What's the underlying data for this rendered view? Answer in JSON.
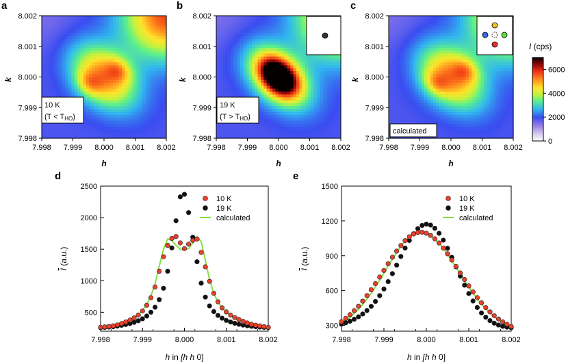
{
  "panel_letters": [
    "a",
    "b",
    "c",
    "d",
    "e"
  ],
  "colorbar": {
    "title": "I (cps)",
    "ticks": [
      "0",
      "2000",
      "4000",
      "6000"
    ],
    "range": [
      0,
      7000
    ]
  },
  "heatmap_axes": {
    "xlabel": "h",
    "ylabel": "k",
    "xticks": [
      "7.998",
      "7.999",
      "8.000",
      "8.001",
      "8.002"
    ],
    "yticks": [
      "8.002",
      "8.001",
      "8.000",
      "7.999",
      "7.998"
    ]
  },
  "heatmap_labels": {
    "a_temp": "10 K",
    "a_cond": "(T < T",
    "a_sub": "HO",
    "b_temp": "19 K",
    "b_cond": "(T > T",
    "b_sub": "HO",
    "c_label": "calculated"
  },
  "plot_d": {
    "ylabel": "I (a.u.)",
    "xlabel": "h in [h h 0]",
    "xticks": [
      "7.998",
      "7.999",
      "8.000",
      "8.001",
      "8.002"
    ],
    "yticks": [
      "500",
      "1000",
      "1500",
      "2000",
      "2500"
    ],
    "legend": [
      "10 K",
      "19 K",
      "calculated"
    ]
  },
  "plot_e": {
    "ylabel": "I (a.u.)",
    "xlabel": "h in [h h 0]",
    "xticks": [
      "7.998",
      "7.999",
      "8.000",
      "8.001",
      "8.002"
    ],
    "yticks": [
      "300",
      "600",
      "900",
      "1200",
      "1500"
    ],
    "legend": [
      "10 K",
      "19 K",
      "calculated"
    ]
  },
  "colors": {
    "red_marker": "#e8412c",
    "black_marker": "#111111",
    "calc_line": "#7ee33a"
  },
  "chart_data": [
    {
      "type": "heatmap",
      "panel": "a",
      "title": "10 K (T < T_HO)",
      "xlabel": "h",
      "ylabel": "k",
      "xlim": [
        7.998,
        8.002
      ],
      "ylim": [
        7.998,
        8.002
      ],
      "peaks": [
        {
          "h": 7.99955,
          "k": 7.99985,
          "I": 5200
        },
        {
          "h": 8.0003,
          "k": 8.0004,
          "I": 5200
        }
      ]
    },
    {
      "type": "heatmap",
      "panel": "b",
      "title": "19 K (T > T_HO)",
      "xlabel": "h",
      "ylabel": "k",
      "xlim": [
        7.998,
        8.002
      ],
      "ylim": [
        7.998,
        8.002
      ],
      "peaks": [
        {
          "h": 8.0,
          "k": 8.0,
          "I": 7000
        }
      ]
    },
    {
      "type": "heatmap",
      "panel": "c",
      "title": "calculated",
      "xlabel": "h",
      "ylabel": "k",
      "xlim": [
        7.998,
        8.002
      ],
      "ylim": [
        7.998,
        8.002
      ],
      "peaks": [
        {
          "h": 7.99955,
          "k": 7.99975,
          "I": 5200
        },
        {
          "h": 8.0003,
          "k": 8.00035,
          "I": 5200
        }
      ]
    },
    {
      "type": "scatter",
      "panel": "d",
      "xlabel": "h in [h h 0]",
      "ylabel": "I (a.u.)",
      "xlim": [
        7.998,
        8.002
      ],
      "ylim": [
        200,
        2500
      ],
      "series": [
        {
          "name": "10 K",
          "x": [
            7.998,
            7.9981,
            7.9982,
            7.9983,
            7.9984,
            7.9985,
            7.9986,
            7.9987,
            7.9988,
            7.9989,
            7.999,
            7.9991,
            7.9992,
            7.9993,
            7.9994,
            7.9995,
            7.9996,
            7.9997,
            7.9998,
            7.9999,
            8.0,
            8.0001,
            8.0002,
            8.0003,
            8.0004,
            8.0005,
            8.0006,
            8.0007,
            8.0008,
            8.0009,
            8.001,
            8.0011,
            8.0012,
            8.0013,
            8.0014,
            8.0015,
            8.0016,
            8.0017,
            8.0018,
            8.0019,
            8.002
          ],
          "values": [
            262,
            268,
            275,
            285,
            300,
            320,
            345,
            375,
            410,
            455,
            520,
            610,
            730,
            900,
            1150,
            1380,
            1560,
            1670,
            1700,
            1600,
            1510,
            1580,
            1640,
            1660,
            1450,
            1220,
            990,
            800,
            665,
            570,
            505,
            455,
            415,
            385,
            355,
            330,
            310,
            295,
            282,
            272,
            262
          ]
        },
        {
          "name": "19 K",
          "x": [
            7.998,
            7.9981,
            7.9982,
            7.9983,
            7.9984,
            7.9985,
            7.9986,
            7.9987,
            7.9988,
            7.9989,
            7.999,
            7.9991,
            7.9992,
            7.9993,
            7.9994,
            7.9995,
            7.9996,
            7.9997,
            7.9998,
            7.9999,
            8.0,
            8.0001,
            8.0002,
            8.0003,
            8.0004,
            8.0005,
            8.0006,
            8.0007,
            8.0008,
            8.0009,
            8.001,
            8.0011,
            8.0012,
            8.0013,
            8.0014,
            8.0015,
            8.0016,
            8.0017,
            8.0018,
            8.0019,
            8.002
          ],
          "values": [
            255,
            260,
            265,
            270,
            280,
            292,
            305,
            320,
            340,
            365,
            395,
            440,
            500,
            580,
            700,
            880,
            1150,
            1520,
            1950,
            2330,
            2370,
            2080,
            1690,
            1300,
            960,
            740,
            600,
            510,
            450,
            405,
            370,
            345,
            325,
            308,
            295,
            285,
            277,
            270,
            265,
            260,
            256
          ]
        },
        {
          "name": "calculated",
          "x": [
            7.998,
            7.9981,
            7.9982,
            7.9983,
            7.9984,
            7.9985,
            7.9986,
            7.9987,
            7.9988,
            7.9989,
            7.999,
            7.9991,
            7.9992,
            7.9993,
            7.9994,
            7.9995,
            7.9996,
            7.9997,
            7.9998,
            7.9999,
            8.0,
            8.0001,
            8.0002,
            8.0003,
            8.0004,
            8.0005,
            8.0006,
            8.0007,
            8.0008,
            8.0009,
            8.001,
            8.0011,
            8.0012,
            8.0013,
            8.0014,
            8.0015,
            8.0016,
            8.0017,
            8.0018,
            8.0019,
            8.002
          ],
          "values": [
            265,
            270,
            278,
            288,
            302,
            322,
            348,
            380,
            418,
            465,
            530,
            625,
            760,
            950,
            1230,
            1500,
            1660,
            1640,
            1560,
            1500,
            1490,
            1510,
            1600,
            1700,
            1620,
            1320,
            1020,
            800,
            660,
            565,
            500,
            450,
            410,
            380,
            350,
            328,
            308,
            293,
            282,
            272,
            262
          ]
        }
      ]
    },
    {
      "type": "scatter",
      "panel": "e",
      "xlabel": "h in [h h 0]",
      "ylabel": "I (a.u.)",
      "xlim": [
        7.998,
        8.002
      ],
      "ylim": [
        250,
        1500
      ],
      "series": [
        {
          "name": "10 K",
          "x": [
            7.998,
            7.9981,
            7.9982,
            7.9983,
            7.9984,
            7.9985,
            7.9986,
            7.9987,
            7.9988,
            7.9989,
            7.999,
            7.9991,
            7.9992,
            7.9993,
            7.9994,
            7.9995,
            7.9996,
            7.9997,
            7.9998,
            7.9999,
            8.0,
            8.0001,
            8.0002,
            8.0003,
            8.0004,
            8.0005,
            8.0006,
            8.0007,
            8.0008,
            8.0009,
            8.001,
            8.0011,
            8.0012,
            8.0013,
            8.0014,
            8.0015,
            8.0016,
            8.0017,
            8.0018,
            8.0019,
            8.002
          ],
          "values": [
            332,
            360,
            392,
            427,
            466,
            509,
            556,
            607,
            660,
            716,
            773,
            831,
            887,
            940,
            988,
            1030,
            1063,
            1087,
            1100,
            1103,
            1094,
            1075,
            1046,
            1010,
            966,
            917,
            864,
            808,
            751,
            695,
            640,
            588,
            539,
            494,
            453,
            416,
            384,
            355,
            330,
            309,
            290
          ]
        },
        {
          "name": "19 K",
          "x": [
            7.998,
            7.9981,
            7.9982,
            7.9983,
            7.9984,
            7.9985,
            7.9986,
            7.9987,
            7.9988,
            7.9989,
            7.999,
            7.9991,
            7.9992,
            7.9993,
            7.9994,
            7.9995,
            7.9996,
            7.9997,
            7.9998,
            7.9999,
            8.0,
            8.0001,
            8.0002,
            8.0003,
            8.0004,
            8.0005,
            8.0006,
            8.0007,
            8.0008,
            8.0009,
            8.001,
            8.0011,
            8.0012,
            8.0013,
            8.0014,
            8.0015,
            8.0016,
            8.0017,
            8.0018,
            8.0019,
            8.002
          ],
          "values": [
            310,
            322,
            336,
            353,
            374,
            398,
            428,
            464,
            506,
            556,
            613,
            677,
            746,
            819,
            894,
            966,
            1032,
            1089,
            1133,
            1161,
            1172,
            1164,
            1137,
            1093,
            1034,
            964,
            886,
            805,
            724,
            646,
            574,
            510,
            454,
            407,
            370,
            341,
            319,
            303,
            292,
            285,
            280
          ]
        },
        {
          "name": "calculated",
          "x": [
            7.998,
            7.9981,
            7.9982,
            7.9983,
            7.9984,
            7.9985,
            7.9986,
            7.9987,
            7.9988,
            7.9989,
            7.999,
            7.9991,
            7.9992,
            7.9993,
            7.9994,
            7.9995,
            7.9996,
            7.9997,
            7.9998,
            7.9999,
            8.0,
            8.0001,
            8.0002,
            8.0003,
            8.0004,
            8.0005,
            8.0006,
            8.0007,
            8.0008,
            8.0009,
            8.001,
            8.0011,
            8.0012,
            8.0013,
            8.0014,
            8.0015,
            8.0016,
            8.0017,
            8.0018,
            8.0019,
            8.002
          ],
          "values": [
            318,
            342,
            370,
            402,
            439,
            481,
            527,
            578,
            632,
            690,
            750,
            811,
            871,
            928,
            980,
            1025,
            1061,
            1087,
            1101,
            1104,
            1095,
            1075,
            1045,
            1007,
            962,
            911,
            856,
            799,
            741,
            684,
            629,
            577,
            528,
            483,
            442,
            406,
            374,
            346,
            322,
            302,
            285
          ]
        }
      ]
    }
  ]
}
